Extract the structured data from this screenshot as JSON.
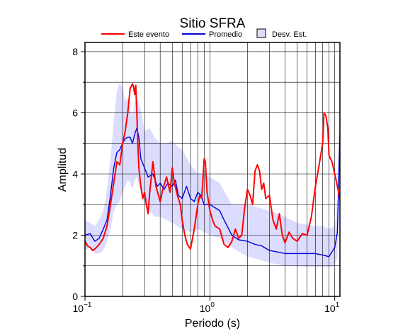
{
  "chart_data": {
    "type": "line",
    "title": "Sitio SFRA",
    "xlabel": "Periodo (s)",
    "ylabel": "Amplitud",
    "x_scale": "log",
    "xlim": [
      0.1,
      11
    ],
    "ylim": [
      0,
      8.3
    ],
    "grid": true,
    "legend_position": "top",
    "x_ticks": [
      {
        "value": 0.1,
        "base": "10",
        "exp": "−1"
      },
      {
        "value": 1,
        "base": "10",
        "exp": "0"
      },
      {
        "value": 10,
        "base": "10",
        "exp": "1"
      }
    ],
    "y_ticks": [
      0,
      2,
      4,
      6,
      8
    ],
    "legend": {
      "event_label": "Este evento",
      "mean_label": "Promedio",
      "std_label": "Desv. Est."
    },
    "colors": {
      "event": "#ff0000",
      "mean": "#0000dd",
      "std_fill": "#dcdcff"
    },
    "series": [
      {
        "name": "Este evento",
        "color": "#ff0000",
        "x": [
          0.1,
          0.105,
          0.11,
          0.115,
          0.12,
          0.13,
          0.14,
          0.15,
          0.16,
          0.17,
          0.18,
          0.19,
          0.2,
          0.21,
          0.22,
          0.23,
          0.24,
          0.245,
          0.25,
          0.255,
          0.26,
          0.265,
          0.27,
          0.28,
          0.29,
          0.3,
          0.31,
          0.32,
          0.33,
          0.35,
          0.37,
          0.4,
          0.42,
          0.45,
          0.48,
          0.5,
          0.52,
          0.55,
          0.58,
          0.6,
          0.63,
          0.66,
          0.7,
          0.75,
          0.8,
          0.83,
          0.86,
          0.9,
          0.92,
          0.95,
          1.0,
          1.05,
          1.1,
          1.2,
          1.3,
          1.4,
          1.5,
          1.6,
          1.7,
          1.8,
          1.9,
          2.0,
          2.1,
          2.2,
          2.3,
          2.4,
          2.5,
          2.6,
          2.7,
          2.8,
          3.0,
          3.2,
          3.4,
          3.6,
          3.8,
          4.0,
          4.3,
          4.6,
          5.0,
          5.5,
          6.0,
          6.5,
          7.0,
          7.5,
          8.0,
          8.2,
          8.5,
          8.8,
          9.0,
          9.5,
          10.0,
          10.5,
          11.0
        ],
        "y": [
          1.8,
          1.65,
          1.6,
          1.5,
          1.55,
          1.7,
          1.9,
          2.3,
          3.0,
          3.7,
          4.4,
          4.3,
          5.0,
          5.4,
          6.0,
          6.8,
          6.95,
          6.85,
          6.6,
          6.9,
          6.0,
          5.0,
          4.2,
          3.6,
          3.2,
          3.4,
          3.0,
          2.7,
          3.4,
          4.4,
          3.6,
          3.1,
          3.5,
          3.9,
          3.4,
          4.2,
          3.7,
          3.3,
          3.0,
          2.5,
          2.0,
          1.7,
          1.55,
          2.2,
          3.0,
          3.3,
          3.2,
          4.5,
          4.4,
          3.4,
          2.8,
          2.5,
          2.3,
          2.2,
          1.7,
          1.6,
          1.8,
          2.2,
          1.9,
          2.0,
          2.9,
          3.5,
          3.3,
          3.0,
          4.1,
          4.3,
          4.1,
          3.5,
          3.7,
          3.2,
          3.3,
          2.5,
          2.2,
          2.7,
          2.0,
          1.75,
          2.1,
          1.9,
          1.8,
          2.05,
          2.0,
          2.6,
          3.6,
          4.3,
          5.0,
          6.0,
          5.9,
          5.5,
          4.6,
          4.4,
          4.0,
          3.6,
          3.2
        ]
      },
      {
        "name": "Promedio",
        "color": "#0000dd",
        "x": [
          0.1,
          0.11,
          0.12,
          0.13,
          0.14,
          0.15,
          0.16,
          0.17,
          0.18,
          0.19,
          0.2,
          0.21,
          0.22,
          0.23,
          0.24,
          0.25,
          0.26,
          0.27,
          0.28,
          0.3,
          0.32,
          0.35,
          0.38,
          0.4,
          0.43,
          0.46,
          0.5,
          0.53,
          0.56,
          0.6,
          0.65,
          0.7,
          0.75,
          0.8,
          0.85,
          0.9,
          1.0,
          1.1,
          1.2,
          1.3,
          1.5,
          1.7,
          2.0,
          2.3,
          2.6,
          3.0,
          3.5,
          4.0,
          5.0,
          6.0,
          7.0,
          8.0,
          9.0,
          10.0,
          10.5,
          11.0
        ],
        "y": [
          2.0,
          2.05,
          1.8,
          1.9,
          2.2,
          2.5,
          3.3,
          4.2,
          4.7,
          4.8,
          5.0,
          5.15,
          5.2,
          5.2,
          5.0,
          5.3,
          5.5,
          5.2,
          4.5,
          4.2,
          3.9,
          4.0,
          3.6,
          3.7,
          3.5,
          3.7,
          3.6,
          3.8,
          3.3,
          3.2,
          3.6,
          3.2,
          3.1,
          3.4,
          3.3,
          3.0,
          3.0,
          2.9,
          2.8,
          2.5,
          2.0,
          1.85,
          1.8,
          1.7,
          1.65,
          1.5,
          1.45,
          1.4,
          1.4,
          1.4,
          1.4,
          1.35,
          1.3,
          1.6,
          2.1,
          5.3
        ]
      }
    ],
    "band": {
      "name": "Desv. Est.",
      "x": [
        0.1,
        0.11,
        0.12,
        0.13,
        0.14,
        0.15,
        0.16,
        0.17,
        0.18,
        0.19,
        0.2,
        0.21,
        0.22,
        0.23,
        0.24,
        0.25,
        0.26,
        0.28,
        0.3,
        0.33,
        0.36,
        0.4,
        0.45,
        0.5,
        0.55,
        0.6,
        0.7,
        0.8,
        0.9,
        1.0,
        1.2,
        1.5,
        2.0,
        2.5,
        3.0,
        4.0,
        5.0,
        6.0,
        7.0,
        8.0,
        9.0,
        10.0,
        10.5,
        11.0
      ],
      "upper": [
        2.5,
        2.4,
        2.3,
        2.5,
        2.8,
        3.5,
        4.5,
        5.7,
        6.7,
        7.0,
        6.8,
        6.4,
        6.5,
        6.1,
        5.9,
        6.3,
        6.5,
        6.1,
        5.4,
        5.5,
        5.2,
        5.0,
        5.0,
        5.1,
        4.9,
        4.8,
        4.3,
        4.0,
        4.0,
        3.9,
        3.7,
        3.0,
        3.0,
        2.9,
        2.8,
        2.6,
        2.4,
        2.35,
        2.3,
        2.3,
        2.2,
        2.3,
        3.2,
        8.3
      ],
      "lower": [
        1.5,
        1.6,
        1.4,
        1.4,
        1.5,
        1.8,
        2.2,
        2.8,
        3.0,
        3.1,
        3.4,
        3.6,
        3.8,
        3.7,
        3.5,
        3.8,
        3.9,
        3.4,
        3.0,
        2.8,
        2.6,
        2.6,
        2.5,
        2.4,
        2.3,
        2.2,
        2.1,
        2.2,
        2.1,
        2.0,
        1.9,
        1.6,
        1.3,
        1.2,
        1.1,
        1.0,
        0.98,
        0.96,
        0.95,
        0.95,
        0.95,
        1.0,
        1.3,
        3.5
      ]
    }
  }
}
